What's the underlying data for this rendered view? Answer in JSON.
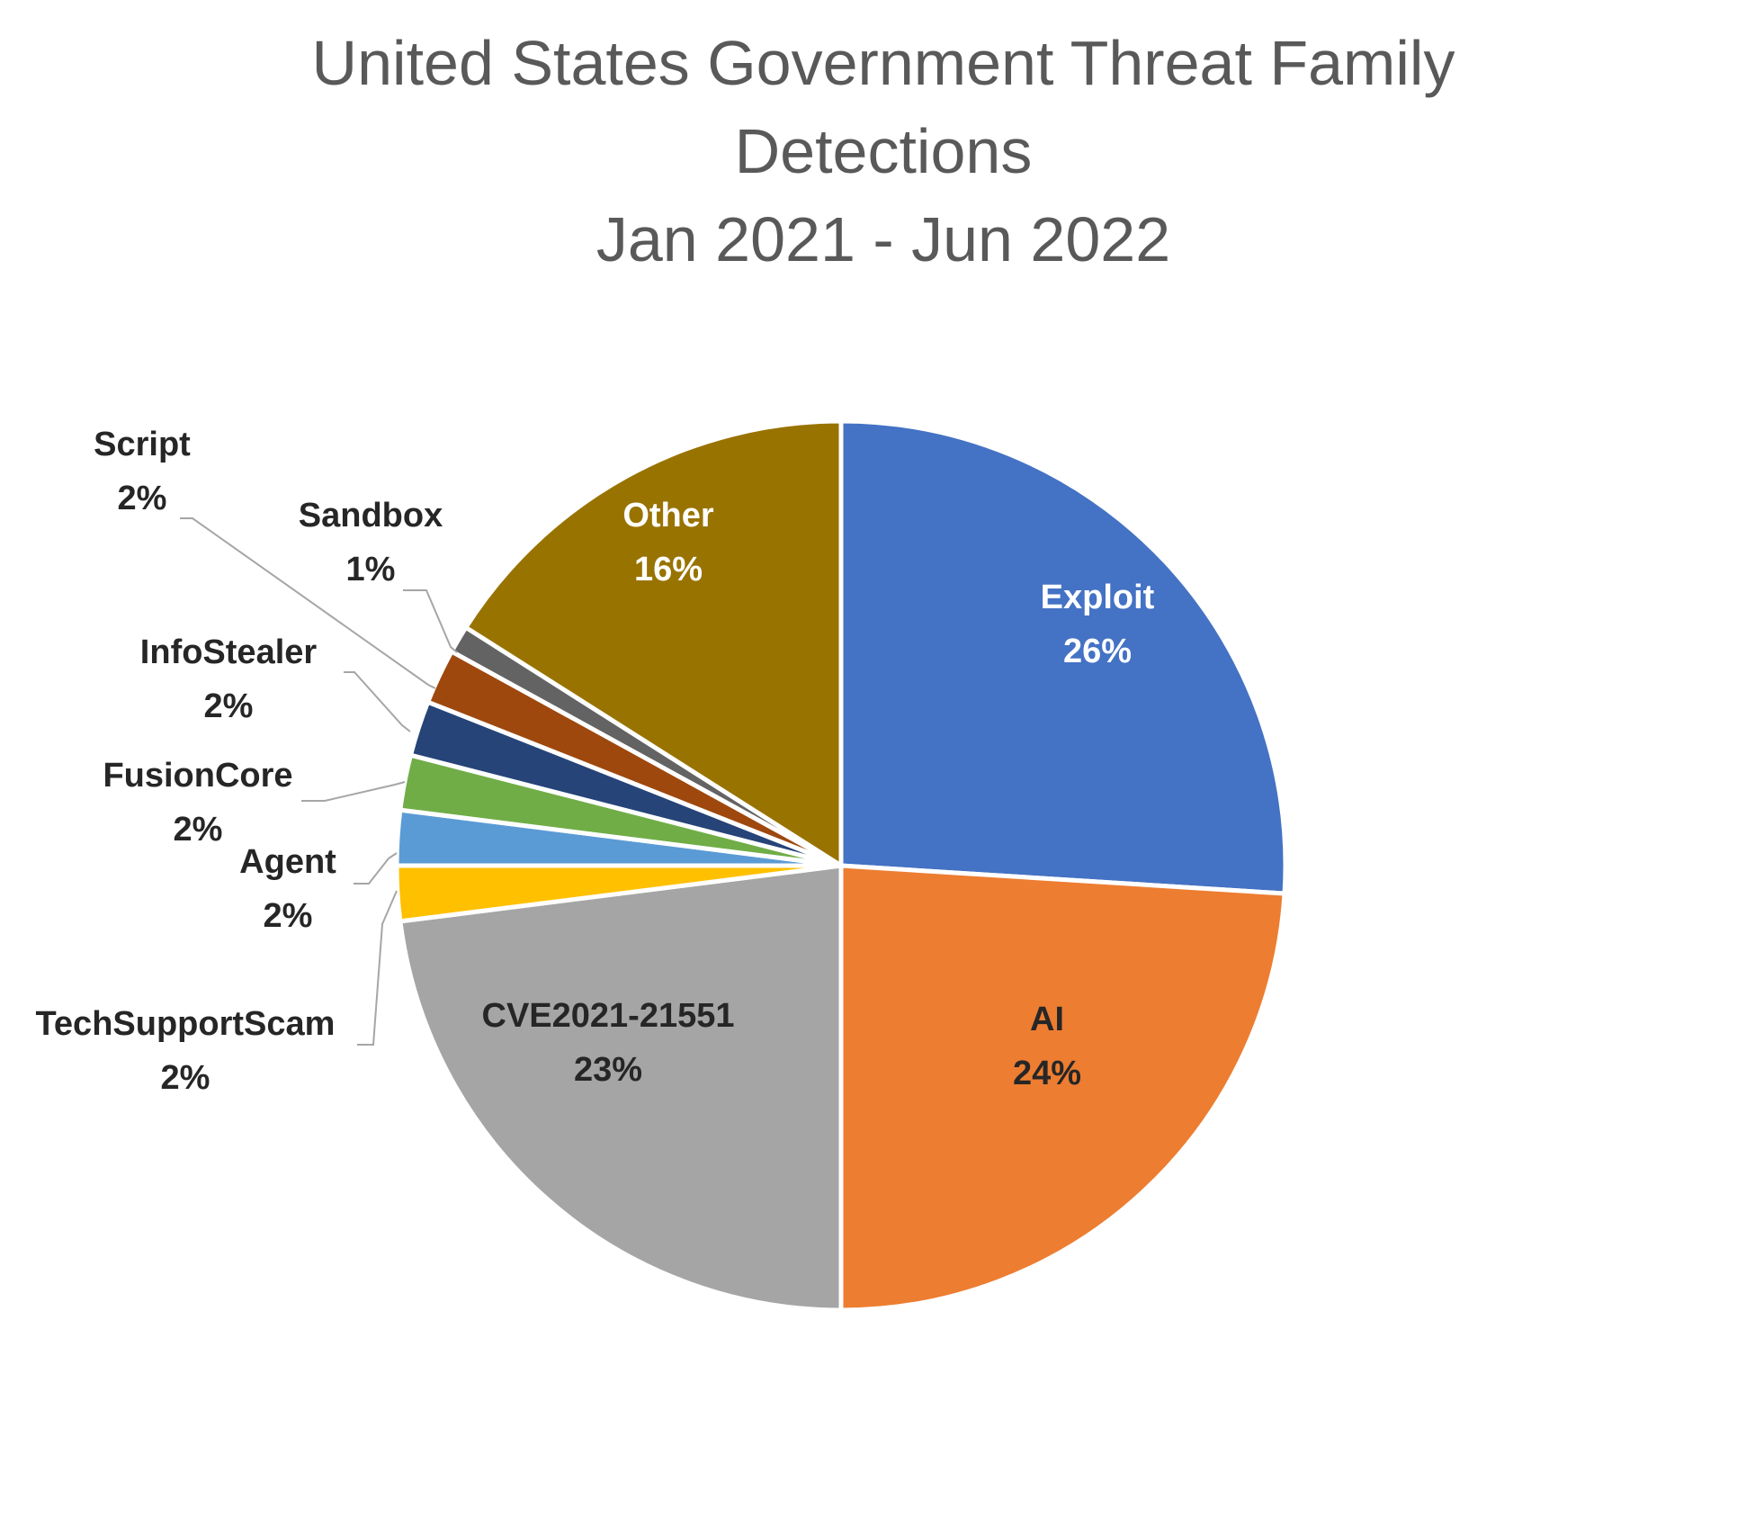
{
  "chart_data": {
    "type": "pie",
    "title_lines": [
      "United States Government Threat Family",
      "Detections",
      "Jan 2021 - Jun 2022"
    ],
    "start_angle_deg": 0,
    "direction": "clockwise",
    "slices": [
      {
        "name": "Exploit",
        "label": "Exploit",
        "value": 26,
        "pct_label": "26%",
        "color": "#4472C4",
        "label_color": "#ffffff"
      },
      {
        "name": "AI",
        "label": "AI",
        "value": 24,
        "pct_label": "24%",
        "color": "#ED7D31",
        "label_color": "#262626"
      },
      {
        "name": "CVE2021-21551",
        "label": "CVE2021-21551",
        "value": 23,
        "pct_label": "23%",
        "color": "#A5A5A5",
        "label_color": "#262626"
      },
      {
        "name": "TechSupportScam",
        "label": "TechSupportScam",
        "value": 2,
        "pct_label": "2%",
        "color": "#FFC000",
        "label_color": "#262626"
      },
      {
        "name": "Agent",
        "label": "Agent",
        "value": 2,
        "pct_label": "2%",
        "color": "#5B9BD5",
        "label_color": "#262626"
      },
      {
        "name": "FusionCore",
        "label": "FusionCore",
        "value": 2,
        "pct_label": "2%",
        "color": "#70AD47",
        "label_color": "#262626"
      },
      {
        "name": "InfoStealer",
        "label": "InfoStealer",
        "value": 2,
        "pct_label": "2%",
        "color": "#264478",
        "label_color": "#262626"
      },
      {
        "name": "Script",
        "label": "Script",
        "value": 2,
        "pct_label": "2%",
        "color": "#9E480E",
        "label_color": "#262626"
      },
      {
        "name": "Sandbox",
        "label": "Sandbox",
        "value": 1,
        "pct_label": "1%",
        "color": "#636363",
        "label_color": "#262626"
      },
      {
        "name": "Other",
        "label": "Other",
        "value": 16,
        "pct_label": "16%",
        "color": "#997300",
        "label_color": "#ffffff"
      }
    ],
    "leader_line_color": "#A6A6A6"
  }
}
